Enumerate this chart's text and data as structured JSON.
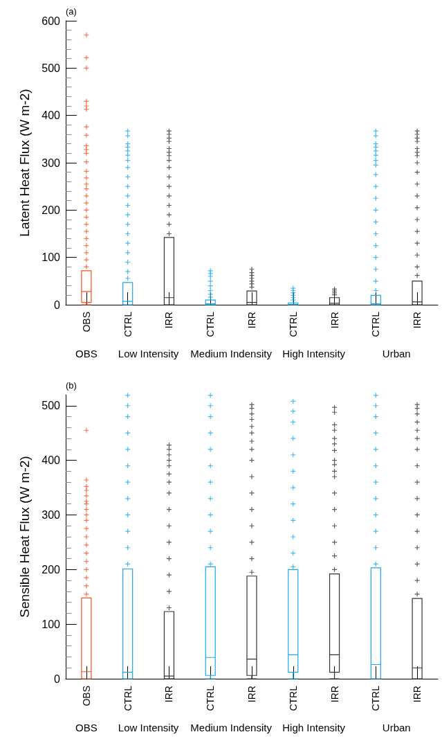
{
  "chart_data": [
    {
      "type": "box",
      "ylabel": "Latent Heat Flux (W m-2)",
      "annotations": [
        "(a)",
        "OBS",
        "Low Intensity",
        "Medium Indensity",
        "High Intensity",
        "Urban"
      ],
      "categories": [
        "OBS",
        "CTRL",
        "IRR",
        "CTRL",
        "IRR",
        "CTRL",
        "IRR",
        "CTRL",
        "IRR"
      ],
      "colors": [
        "#f4511e",
        "#1aa7ec",
        "#333333",
        "#1aa7ec",
        "#333333",
        "#1aa7ec",
        "#333333",
        "#1aa7ec",
        "#333333"
      ],
      "marker": "cross",
      "ylim": [
        0,
        600
      ],
      "yticks": [
        0,
        100,
        200,
        300,
        400,
        500,
        600
      ],
      "grid": false,
      "boxes": [
        {
          "low": 0,
          "q1": 5,
          "median": 28,
          "q3": 72,
          "high": 72,
          "outliers": [
            80,
            95,
            110,
            125,
            140,
            155,
            170,
            185,
            200,
            215,
            230,
            245,
            255,
            268,
            282,
            302,
            320,
            328,
            336,
            358,
            376,
            413,
            420,
            430,
            500,
            522,
            570
          ]
        },
        {
          "low": 0,
          "q1": 0,
          "median": 7,
          "q3": 47,
          "high": 47,
          "outliers": [
            56,
            70,
            90,
            110,
            130,
            150,
            170,
            190,
            210,
            230,
            250,
            270,
            290,
            305,
            316,
            325,
            333,
            340,
            357,
            367
          ]
        },
        {
          "low": 0,
          "q1": 0,
          "median": 15,
          "q3": 142,
          "high": 142,
          "outliers": [
            150,
            170,
            190,
            210,
            230,
            250,
            270,
            290,
            305,
            315,
            322,
            330,
            345,
            352,
            360,
            367
          ]
        },
        {
          "low": 0,
          "q1": 0,
          "median": 2,
          "q3": 10,
          "high": 10,
          "outliers": [
            16,
            22,
            30,
            40,
            50,
            60,
            66,
            72
          ]
        },
        {
          "low": 0,
          "q1": 0,
          "median": 5,
          "q3": 29,
          "high": 29,
          "outliers": [
            37,
            44,
            50,
            56,
            62,
            68,
            75
          ]
        },
        {
          "low": 0,
          "q1": 0,
          "median": 1,
          "q3": 4,
          "high": 4,
          "outliers": [
            10,
            15,
            20,
            25,
            30,
            35
          ]
        },
        {
          "low": 0,
          "q1": 0,
          "median": 3,
          "q3": 15,
          "high": 15,
          "outliers": [
            21,
            25,
            29,
            33
          ]
        },
        {
          "low": 0,
          "q1": 0,
          "median": 2,
          "q3": 20,
          "high": 20,
          "outliers": [
            30,
            50,
            75,
            100,
            125,
            150,
            175,
            200,
            225,
            250,
            275,
            295,
            305,
            316,
            325,
            333,
            340,
            357,
            367
          ]
        },
        {
          "low": 0,
          "q1": 0,
          "median": 6,
          "q3": 50,
          "high": 50,
          "outliers": [
            62,
            80,
            105,
            130,
            155,
            180,
            205,
            230,
            255,
            280,
            300,
            315,
            322,
            330,
            345,
            352,
            360,
            367
          ]
        }
      ]
    },
    {
      "type": "box",
      "ylabel": "Sensible Heat Flux (W m-2)",
      "annotations": [
        "(b)",
        "OBS",
        "Low Intensity",
        "Medium Indensity",
        "High Intensity",
        "Urban"
      ],
      "categories": [
        "OBS",
        "CTRL",
        "IRR",
        "CTRL",
        "IRR",
        "CTRL",
        "IRR",
        "CTRL",
        "IRR"
      ],
      "colors": [
        "#f4511e",
        "#1aa7ec",
        "#333333",
        "#1aa7ec",
        "#333333",
        "#1aa7ec",
        "#333333",
        "#1aa7ec",
        "#333333"
      ],
      "marker": "cross",
      "ylim": [
        0,
        520
      ],
      "yticks": [
        0,
        100,
        200,
        300,
        400,
        500
      ],
      "grid": false,
      "boxes": [
        {
          "low": 0,
          "q1": 0,
          "median": 13,
          "q3": 148,
          "high": 148,
          "outliers": [
            155,
            170,
            185,
            200,
            215,
            230,
            245,
            260,
            275,
            290,
            300,
            310,
            320,
            325,
            335,
            345,
            352,
            364,
            455
          ]
        },
        {
          "low": 0,
          "q1": 0,
          "median": 12,
          "q3": 201,
          "high": 201,
          "outliers": [
            210,
            240,
            270,
            300,
            330,
            360,
            390,
            420,
            450,
            480,
            500,
            519
          ]
        },
        {
          "low": 0,
          "q1": 0,
          "median": 5,
          "q3": 123,
          "high": 123,
          "outliers": [
            130,
            160,
            190,
            220,
            250,
            280,
            310,
            340,
            360,
            375,
            390,
            400,
            410,
            420,
            428
          ]
        },
        {
          "low": 0,
          "q1": 6,
          "median": 39,
          "q3": 205,
          "high": 205,
          "outliers": [
            210,
            240,
            270,
            300,
            330,
            360,
            390,
            420,
            450,
            480,
            500,
            519
          ]
        },
        {
          "low": 0,
          "q1": 6,
          "median": 36,
          "q3": 188,
          "high": 188,
          "outliers": [
            195,
            220,
            250,
            280,
            310,
            340,
            370,
            400,
            420,
            435,
            450,
            462,
            475,
            485,
            495,
            502
          ]
        },
        {
          "low": 0,
          "q1": 12,
          "median": 44,
          "q3": 200,
          "high": 200,
          "outliers": [
            205,
            230,
            260,
            290,
            320,
            350,
            380,
            410,
            440,
            470,
            490,
            508
          ]
        },
        {
          "low": 0,
          "q1": 12,
          "median": 44,
          "q3": 192,
          "high": 192,
          "outliers": [
            200,
            225,
            250,
            280,
            310,
            340,
            370,
            380,
            392,
            400,
            418,
            430,
            440,
            455,
            465,
            488,
            497
          ]
        },
        {
          "low": 0,
          "q1": 0,
          "median": 26,
          "q3": 203,
          "high": 203,
          "outliers": [
            210,
            240,
            270,
            300,
            330,
            360,
            390,
            420,
            450,
            480,
            500,
            519
          ]
        },
        {
          "low": 0,
          "q1": 0,
          "median": 20,
          "q3": 147,
          "high": 147,
          "outliers": [
            155,
            180,
            210,
            240,
            270,
            300,
            330,
            360,
            390,
            420,
            440,
            455,
            470,
            485,
            495,
            502
          ]
        }
      ]
    }
  ]
}
